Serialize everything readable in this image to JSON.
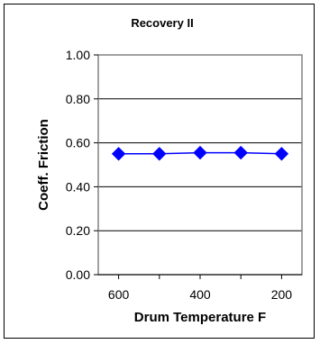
{
  "chart_data": {
    "type": "line",
    "title": "Recovery II",
    "xlabel": "Drum Temperature F",
    "ylabel": "Coeff. Friction",
    "x": [
      600,
      500,
      400,
      300,
      200
    ],
    "x_ticks": [
      600,
      400,
      200
    ],
    "x_tick_labels": [
      "600",
      "400",
      "200"
    ],
    "xlim": [
      650,
      150
    ],
    "x_reversed": true,
    "ylim": [
      0,
      1
    ],
    "y_ticks": [
      0,
      0.2,
      0.4,
      0.6,
      0.8,
      1.0
    ],
    "y_tick_labels": [
      "0.00",
      "0.20",
      "0.40",
      "0.60",
      "0.80",
      "1.00"
    ],
    "series": [
      {
        "values": [
          0.55,
          0.55,
          0.555,
          0.555,
          0.55
        ],
        "color": "#0000ff",
        "marker": "diamond"
      }
    ],
    "grid": "horizontal",
    "legend": "none",
    "plot_border_color": "#808080",
    "gridline_color": "#000000"
  }
}
